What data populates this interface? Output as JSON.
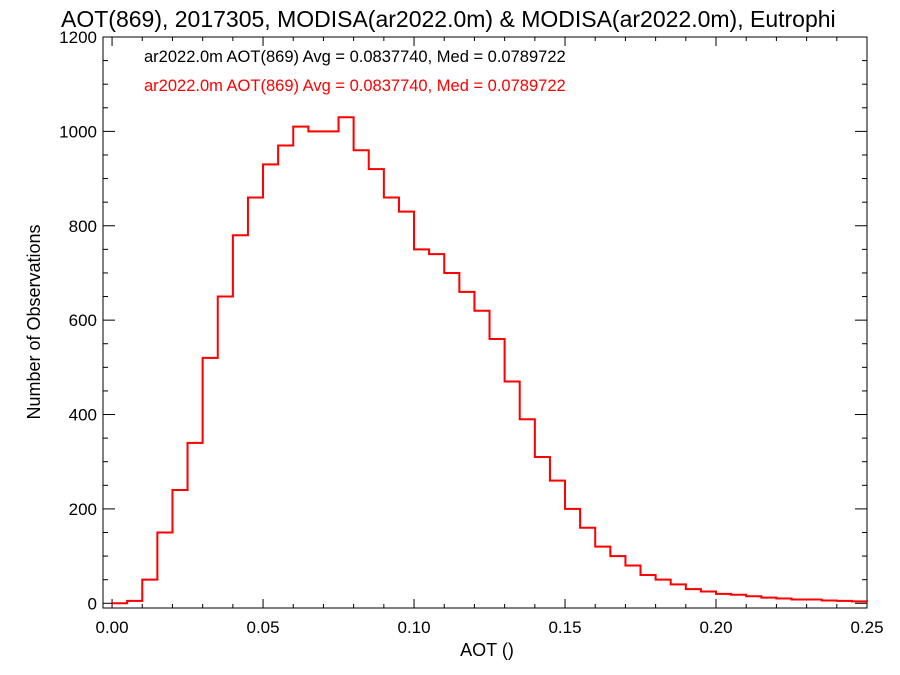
{
  "chart_data": {
    "type": "line",
    "step": true,
    "title": "AOT(869), 2017305, MODISA(ar2022.0m) & MODISA(ar2022.0m), Eutrophi",
    "xlabel": "AOT ()",
    "ylabel": "Number of Observations",
    "xlim": [
      -0.003,
      0.25
    ],
    "ylim": [
      -10,
      1200
    ],
    "x_ticks": [
      0.0,
      0.05,
      0.1,
      0.15,
      0.2,
      0.25
    ],
    "x_tick_labels": [
      "0.00",
      "0.05",
      "0.10",
      "0.15",
      "0.20",
      "0.25"
    ],
    "y_ticks": [
      0,
      200,
      400,
      600,
      800,
      1000,
      1200
    ],
    "y_tick_labels": [
      "0",
      "200",
      "400",
      "600",
      "800",
      "1000",
      "1200"
    ],
    "grid": false,
    "colors": {
      "series1": "#000000",
      "series2": "#ff0000"
    },
    "annotations": [
      {
        "text": "ar2022.0m AOT(869) Avg = 0.0837740, Med = 0.0789722",
        "color": "#000000"
      },
      {
        "text": "ar2022.0m AOT(869) Avg = 0.0837740, Med = 0.0789722",
        "color": "#ff0000"
      }
    ],
    "series": [
      {
        "color": "#000000"
      },
      {
        "color": "#ff0000"
      }
    ],
    "x": [
      0.0,
      0.005,
      0.01,
      0.015,
      0.02,
      0.025,
      0.03,
      0.035,
      0.04,
      0.045,
      0.05,
      0.055,
      0.06,
      0.065,
      0.07,
      0.075,
      0.08,
      0.085,
      0.09,
      0.095,
      0.1,
      0.105,
      0.11,
      0.115,
      0.12,
      0.125,
      0.13,
      0.135,
      0.14,
      0.145,
      0.15,
      0.155,
      0.16,
      0.165,
      0.17,
      0.175,
      0.18,
      0.185,
      0.19,
      0.195,
      0.2,
      0.205,
      0.21,
      0.215,
      0.22,
      0.225,
      0.23,
      0.235,
      0.24,
      0.245,
      0.25
    ],
    "y": [
      0,
      5,
      50,
      150,
      240,
      340,
      520,
      650,
      780,
      860,
      930,
      970,
      1010,
      1000,
      1000,
      1030,
      960,
      920,
      860,
      830,
      750,
      740,
      700,
      660,
      620,
      560,
      470,
      390,
      310,
      260,
      200,
      160,
      120,
      100,
      80,
      60,
      50,
      40,
      30,
      25,
      20,
      18,
      15,
      12,
      10,
      8,
      8,
      6,
      5,
      4,
      3
    ]
  }
}
